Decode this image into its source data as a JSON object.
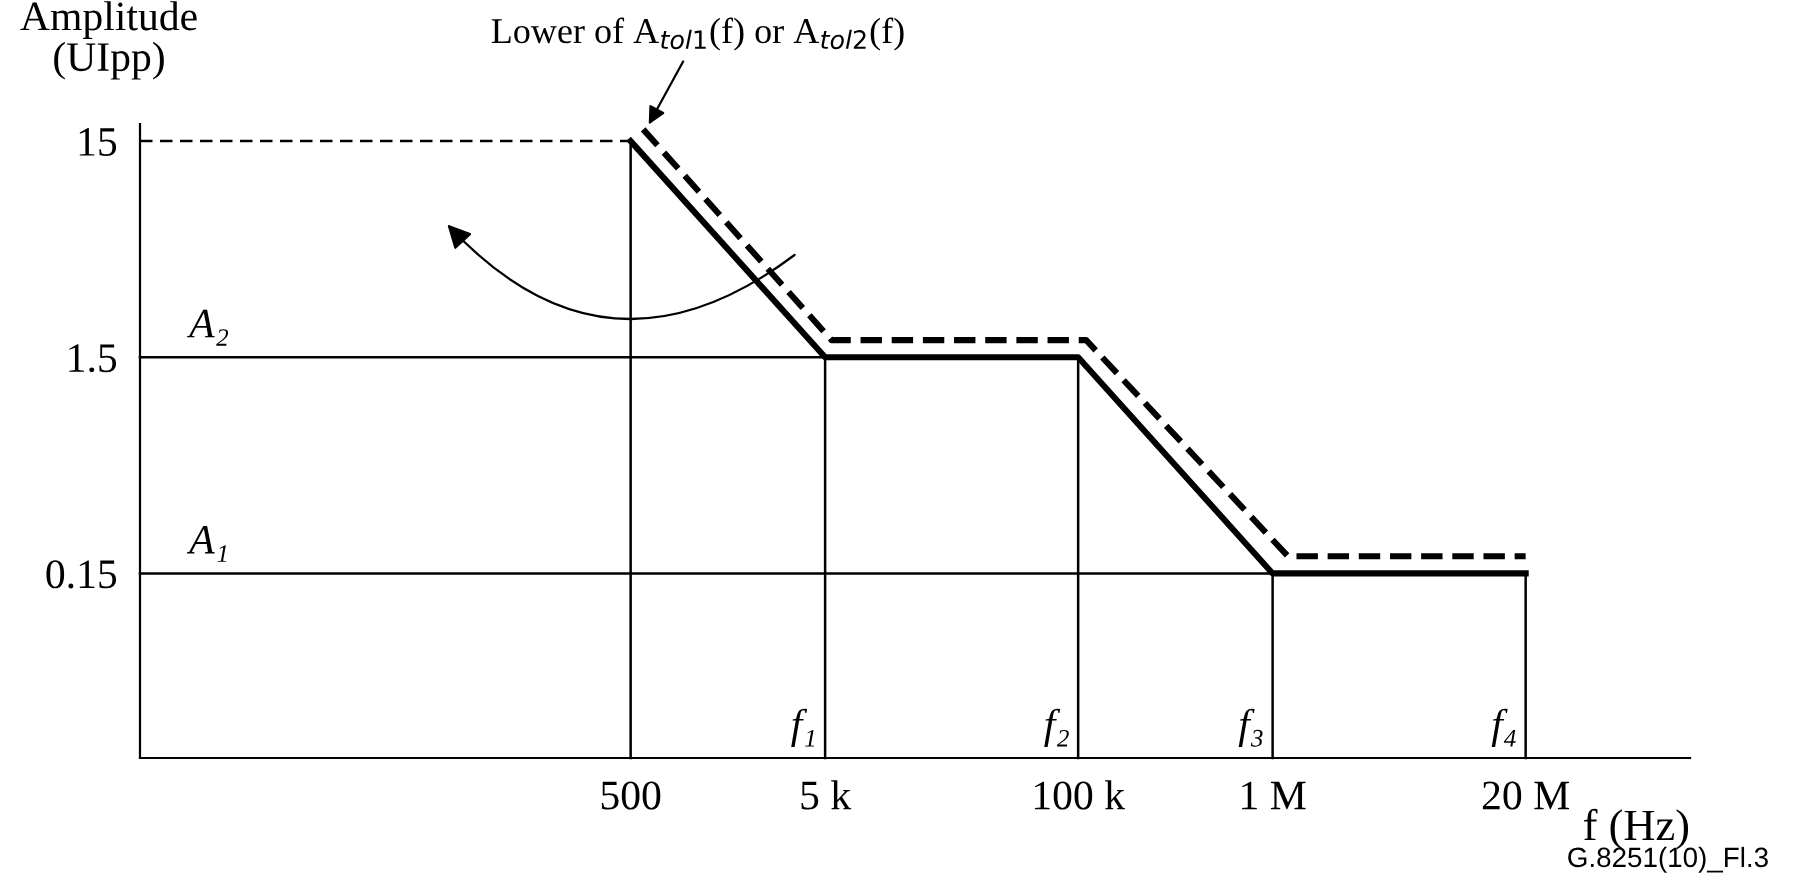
{
  "chart_data": {
    "type": "line",
    "log": "xy",
    "ylabel": "Amplitude\n(UIpp)",
    "xlabel": "f (Hz)",
    "xlim": [
      1.5,
      140000000
    ],
    "ylim": [
      0.021,
      18
    ],
    "xticks": [
      500,
      {
        "value": 5000,
        "label": "5 k"
      },
      {
        "value": 100000,
        "label": "100 k"
      },
      {
        "value": 1000000,
        "label": "1 M"
      },
      {
        "value": 20000000,
        "label": "20 M"
      }
    ],
    "yticks": [
      15,
      1.5,
      0.15
    ],
    "series": [
      {
        "color": "#000000",
        "line_style": "solid",
        "x": [
          500,
          5000,
          100000,
          1000000,
          20000000
        ],
        "values": [
          15,
          1.5,
          1.5,
          0.15,
          0.15
        ]
      },
      {
        "color": "#000000",
        "line_style": "dashed",
        "x": [
          580,
          5400,
          110000,
          1200000,
          20000000
        ],
        "values": [
          17,
          1.8,
          1.8,
          0.18,
          0.18
        ]
      },
      {
        "color": "#000000",
        "line_style": "dashed",
        "x": [
          1.5,
          500
        ],
        "values": [
          15,
          15
        ]
      },
      {
        "color": "#000000",
        "line_style": "solid",
        "x": [
          1.5,
          5000
        ],
        "values": [
          1.5,
          1.5
        ]
      },
      {
        "color": "#000000",
        "line_style": "solid",
        "x": [
          1.5,
          20000000
        ],
        "values": [
          0.15,
          0.15
        ]
      },
      {
        "color": "#000000",
        "line_style": "solid",
        "x": [
          500,
          500
        ],
        "values": [
          0.021,
          15
        ]
      },
      {
        "color": "#000000",
        "line_style": "solid",
        "x": [
          5000,
          5000
        ],
        "values": [
          0.021,
          1.5
        ]
      },
      {
        "color": "#000000",
        "line_style": "solid",
        "x": [
          100000,
          100000
        ],
        "values": [
          0.021,
          1.5
        ]
      },
      {
        "color": "#000000",
        "line_style": "solid",
        "x": [
          1000000,
          1000000
        ],
        "values": [
          0.021,
          0.15
        ]
      },
      {
        "color": "#000000",
        "line_style": "solid",
        "x": [
          20000000,
          20000000
        ],
        "values": [
          0.021,
          0.15
        ]
      }
    ],
    "annotations": [
      {
        "text": "Lower of A$_{tol1}$(f) or A$_{tol2}$(f)",
        "x": 600,
        "y": 17
      },
      {
        "text": "A₂",
        "x": 3.4,
        "y": 1.5
      },
      {
        "text": "A₁",
        "x": 3.4,
        "y": 0.15
      },
      {
        "text": "f₁",
        "x": 5000,
        "y": 0.021
      },
      {
        "text": "f₂",
        "x": 100000,
        "y": 0.021
      },
      {
        "text": "f₃",
        "x": 1000000,
        "y": 0.021
      },
      {
        "text": "f₄",
        "x": 20000000,
        "y": 0.021
      },
      "G.8251(10)_Fl.3"
    ]
  }
}
